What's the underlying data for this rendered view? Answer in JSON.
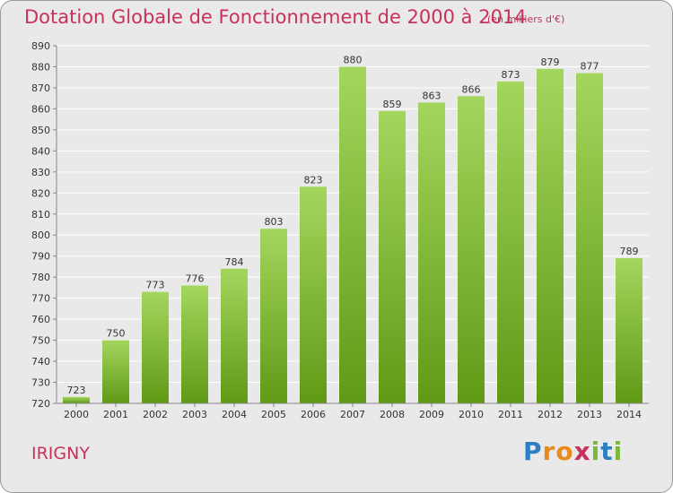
{
  "title": "Dotation Globale de Fonctionnement de 2000 à 2014",
  "subtitle": "(en milliers d'€)",
  "city": "IRIGNY",
  "logo": {
    "letters": [
      "P",
      "r",
      "o",
      "x",
      "i",
      "t",
      "i"
    ],
    "colors": [
      "#2c7fc2",
      "#e88a1a",
      "#e88a1a",
      "#c8325a",
      "#7bb83a",
      "#2c7fc2",
      "#7bb83a"
    ]
  },
  "colors": {
    "title": "#c8325a",
    "bar_top": "#a4d65e",
    "bar_bottom": "#5f9a16",
    "background": "#e9e9e9",
    "grid": "#ffffff"
  },
  "chart_data": {
    "type": "bar",
    "categories": [
      "2000",
      "2001",
      "2002",
      "2003",
      "2004",
      "2005",
      "2006",
      "2007",
      "2008",
      "2009",
      "2010",
      "2011",
      "2012",
      "2013",
      "2014"
    ],
    "values": [
      723,
      750,
      773,
      776,
      784,
      803,
      823,
      880,
      859,
      863,
      866,
      873,
      879,
      877,
      789
    ],
    "ylim": [
      720,
      890
    ],
    "yticks": [
      720,
      730,
      740,
      750,
      760,
      770,
      780,
      790,
      800,
      810,
      820,
      830,
      840,
      850,
      860,
      870,
      880,
      890
    ],
    "grid": true,
    "data_labels": true
  }
}
